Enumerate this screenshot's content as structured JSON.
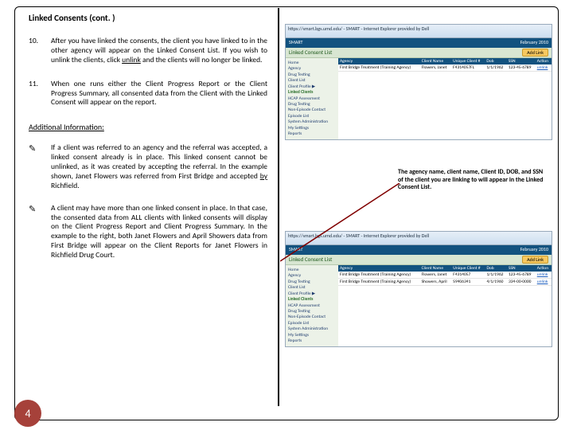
{
  "heading": "Linked Consents (cont. )",
  "items": [
    {
      "num": "10.",
      "text": "After you have linked the consents, the client you have linked to in the other agency will appear on the Linked Consent List. If you wish to unlink the clients, click <u>unlink</u> and the clients will no longer be linked."
    },
    {
      "num": "11.",
      "text": "When one runs either the Client Progress Report or the Client Progress Summary, all consented data from the Client with the Linked Consent will appear on the report."
    }
  ],
  "additional_label": "Additional Information:",
  "bullets": [
    "If a client was referred to an agency and the referral was accepted, a linked consent already is in place. This linked consent cannot be unlinked, as it was created by accepting the referral. In the example shown, Janet Flowers was referred from First Bridge and accepted <u>by</u> Richfield.",
    "A client may have more than one linked consent in place. In that case, the consented data from ALL clients with linked consents will display on the Client Progress Report and Client Progress Summary. In the example to the right, both Janet Flowers and April Showers data from First Bridge will appear on the Client Reports for Janet Flowers in Richfield Drug Court."
  ],
  "callout": "The agency name, client name, Client ID, DOB, and SSN of the client you are linking to will appear in the Linked Consent List.",
  "page_number": "4",
  "screenshot": {
    "ie_title": "https://smart.bgs.umd.edu/ - SMART - Internet Explorer provided by Dell",
    "smart_title": "SMART",
    "smart_date": "February 2010",
    "panel_title": "Linked Consent List",
    "add_btn": "Add Link",
    "sidebar": [
      "Home",
      "Agency",
      "Drug Testing",
      "Client List",
      "Client Profile ▶",
      "Linked Clients",
      "HCAP Assessment",
      "Drug Testing",
      "Non-Episode Contact",
      "Episode List",
      "System Administration",
      "My Settings",
      "Reports"
    ],
    "columns": [
      "Agency",
      "Client Name",
      "Unique Client #",
      "Dob",
      "SSN",
      "Action"
    ],
    "rows_top": [
      [
        "First Bridge Treatment (Training Agency)",
        "Flowers, Janet",
        "F4314057FL",
        "1/1/1962",
        "123-45-6789",
        "unlink"
      ]
    ],
    "rows_bottom": [
      [
        "First Bridge Treatment (Training Agency)",
        "Flowers, Janet",
        "F4314057",
        "1/1/1962",
        "123-45-6789",
        "unlink"
      ],
      [
        "First Bridge Treatment (Training Agency)",
        "Showers, April",
        "S9406341",
        "4/1/1960",
        "334-00-0000",
        "unlink"
      ]
    ]
  },
  "colors": {
    "page_circle": "#a6413a",
    "header_dark": "#12527f",
    "pane_green": "#d8e6d2",
    "side_bg": "#ecf2e8",
    "callout_line": "#800000"
  }
}
